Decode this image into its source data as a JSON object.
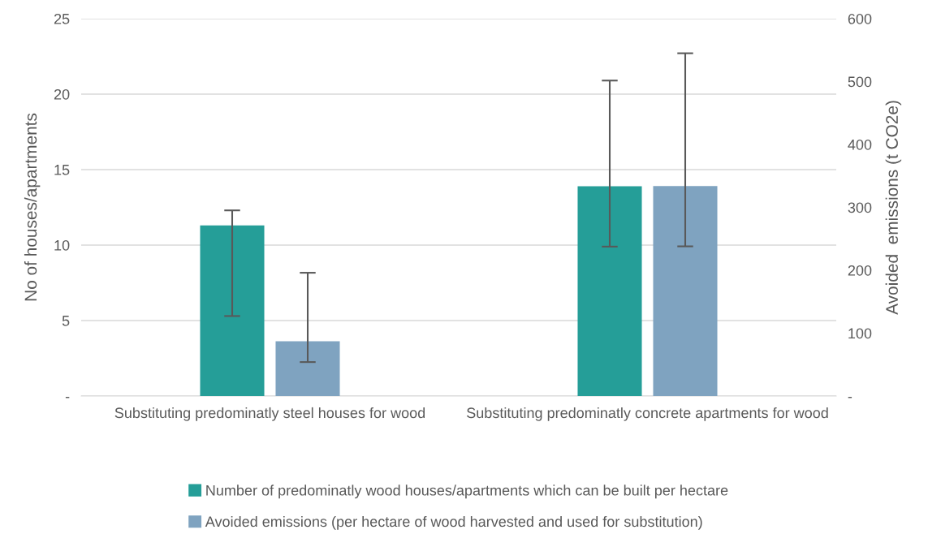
{
  "chart_data": {
    "type": "bar",
    "categories": [
      "Substituting predominatly steel houses for wood",
      "Substituting predominatly concrete apartments for wood"
    ],
    "series": [
      {
        "name": "Number of predominatly wood houses/apartments which can be built per hectare",
        "color": "#259e98",
        "values": [
          11.3,
          13.9
        ],
        "errors": [
          [
            5.3,
            12.3
          ],
          [
            9.9,
            20.9
          ]
        ]
      },
      {
        "name": "Avoided emissions (per hectare of wood harvested and used for substitution)",
        "color": "#7fa3c0",
        "values": [
          87,
          334
        ],
        "errors": [
          [
            54,
            196
          ],
          [
            238,
            545
          ]
        ],
        "axis": "y2"
      }
    ],
    "ylabel": "No of houses/apartments",
    "y2label": "Avoided  emissions (t CO2e)",
    "ylim": [
      0,
      25
    ],
    "yticks": [
      {
        "value": 0,
        "label": "-"
      },
      5,
      10,
      15,
      20,
      25
    ],
    "y2lim": [
      0,
      600
    ],
    "y2ticks": [
      {
        "value": 0,
        "label": "-"
      },
      100,
      200,
      300,
      400,
      500,
      600
    ],
    "grid": "y",
    "legend": "bottom"
  }
}
